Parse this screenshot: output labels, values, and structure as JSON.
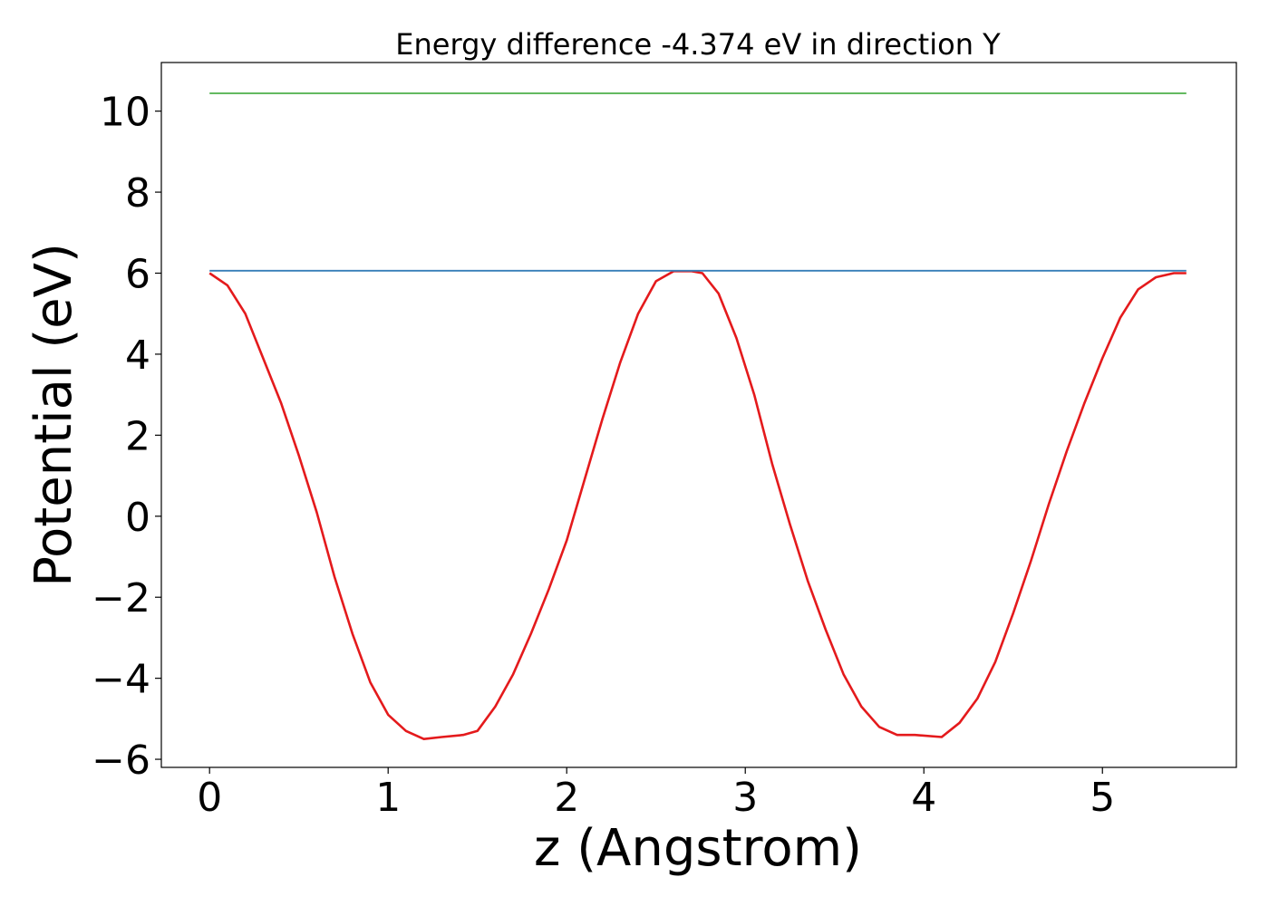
{
  "chart_data": {
    "type": "line",
    "title": "Energy difference -4.374 eV in direction Y",
    "xlabel": "z (Angstrom)",
    "ylabel": "Potential (eV)",
    "xlim": [
      -0.27,
      5.75
    ],
    "ylim": [
      -6.2,
      11.2
    ],
    "xticks": [
      0,
      1,
      2,
      3,
      4,
      5
    ],
    "yticks": [
      -6,
      -4,
      -2,
      0,
      2,
      4,
      6,
      8,
      10
    ],
    "xtick_labels": [
      "0",
      "1",
      "2",
      "3",
      "4",
      "5"
    ],
    "ytick_labels": [
      "−6",
      "−4",
      "−2",
      "0",
      "2",
      "4",
      "6",
      "8",
      "10"
    ],
    "grid": false,
    "legend": "none",
    "series": [
      {
        "color": "#e41a1c",
        "x": [
          0,
          0.1,
          0.2,
          0.3,
          0.4,
          0.5,
          0.6,
          0.7,
          0.8,
          0.9,
          1.0,
          1.1,
          1.2,
          1.3,
          1.42,
          1.5,
          1.6,
          1.7,
          1.8,
          1.9,
          2.0,
          2.1,
          2.2,
          2.3,
          2.4,
          2.5,
          2.6,
          2.7,
          2.76,
          2.85,
          2.95,
          3.05,
          3.15,
          3.25,
          3.35,
          3.45,
          3.55,
          3.65,
          3.75,
          3.85,
          3.95,
          4.1,
          4.2,
          4.3,
          4.4,
          4.5,
          4.6,
          4.7,
          4.8,
          4.9,
          5.0,
          5.1,
          5.2,
          5.3,
          5.4,
          5.47
        ],
        "y": [
          6.0,
          5.7,
          5.0,
          3.9,
          2.8,
          1.5,
          0.1,
          -1.5,
          -2.9,
          -4.1,
          -4.9,
          -5.3,
          -5.5,
          -5.45,
          -5.4,
          -5.3,
          -4.7,
          -3.9,
          -2.9,
          -1.8,
          -0.6,
          0.9,
          2.4,
          3.8,
          5.0,
          5.8,
          6.05,
          6.05,
          6.0,
          5.5,
          4.4,
          3.0,
          1.3,
          -0.2,
          -1.6,
          -2.8,
          -3.9,
          -4.7,
          -5.2,
          -5.4,
          -5.4,
          -5.45,
          -5.1,
          -4.5,
          -3.6,
          -2.4,
          -1.1,
          0.3,
          1.6,
          2.8,
          3.9,
          4.9,
          5.6,
          5.9,
          6.0,
          6.0
        ]
      },
      {
        "color": "#377eb8",
        "x": [
          0,
          5.47
        ],
        "y": [
          6.06,
          6.06
        ]
      },
      {
        "color": "#4daf4a",
        "x": [
          0,
          5.47
        ],
        "y": [
          10.44,
          10.44
        ]
      }
    ]
  }
}
